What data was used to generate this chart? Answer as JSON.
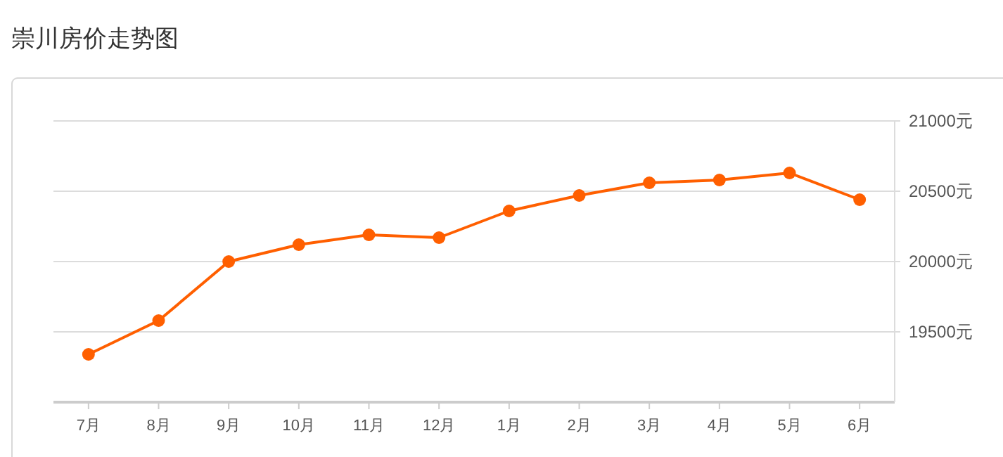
{
  "chart_data": {
    "type": "line",
    "title": "崇川房价走势图",
    "categories": [
      "7月",
      "8月",
      "9月",
      "10月",
      "11月",
      "12月",
      "1月",
      "2月",
      "3月",
      "4月",
      "5月",
      "6月"
    ],
    "series": [
      {
        "color": "#ff5f00",
        "values": [
          19340,
          19580,
          20000,
          20120,
          20190,
          20170,
          20360,
          20470,
          20560,
          20580,
          20630,
          20440
        ]
      }
    ],
    "ylim": [
      19000,
      21000
    ],
    "yticks": [
      {
        "value": 19500,
        "label": "19500元"
      },
      {
        "value": 20000,
        "label": "20000元"
      },
      {
        "value": 20500,
        "label": "20500元"
      },
      {
        "value": 21000,
        "label": "21000元"
      }
    ],
    "grid": "y",
    "marker": "circle",
    "line_style": "solid"
  }
}
